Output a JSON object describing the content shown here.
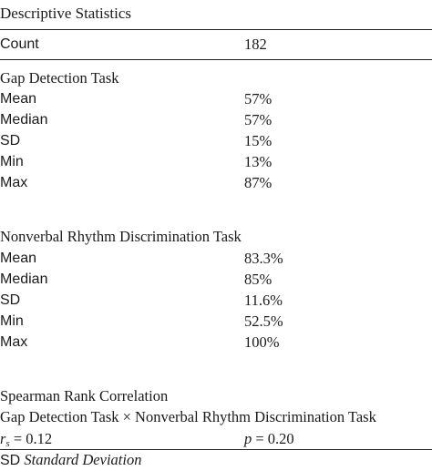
{
  "caption": "Descriptive Statistics",
  "count": {
    "label": "Count",
    "value": "182"
  },
  "gap_task": {
    "title": "Gap Detection Task",
    "rows": [
      {
        "label": "Mean",
        "value": "57%"
      },
      {
        "label": "Median",
        "value": "57%"
      },
      {
        "label": "SD",
        "value": "15%"
      },
      {
        "label": "Min",
        "value": "13%"
      },
      {
        "label": "Max",
        "value": "87%"
      }
    ]
  },
  "rhythm_task": {
    "title": "Nonverbal Rhythm Discrimination Task",
    "rows": [
      {
        "label": "Mean",
        "value": "83.3%"
      },
      {
        "label": "Median",
        "value": "85%"
      },
      {
        "label": "SD",
        "value": "11.6%"
      },
      {
        "label": "Min",
        "value": "52.5%"
      },
      {
        "label": "Max",
        "value": "100%"
      }
    ]
  },
  "correlation": {
    "title": "Spearman Rank Correlation",
    "comparison": "Gap Detection Task × Nonverbal Rhythm Discrimination Task",
    "rs_symbol": "r",
    "rs_subscript": "s",
    "rs_value": "= 0.12",
    "p_symbol": "p",
    "p_value": "= 0.20"
  },
  "footnote": {
    "abbr": "SD",
    "definition": "Standard Deviation"
  }
}
